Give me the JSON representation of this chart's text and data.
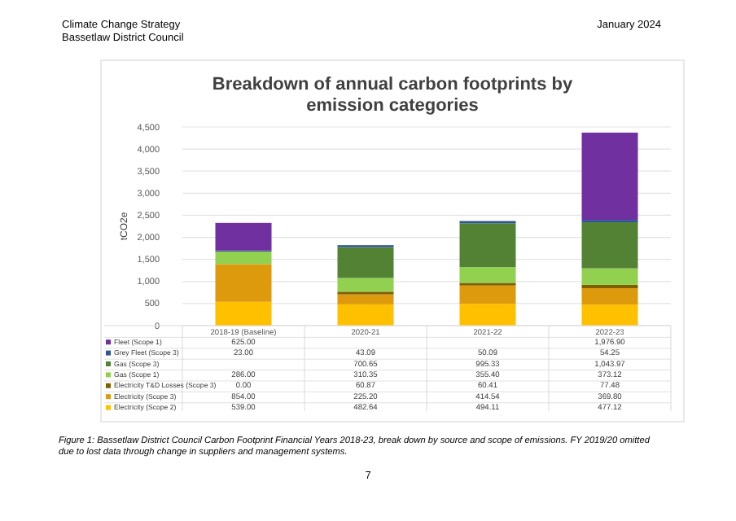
{
  "chart_data": {
    "type": "bar",
    "title": "Breakdown of annual carbon footprints by emission categories",
    "ylabel": "tCO2e",
    "annotations": [
      "Climate Change Strategy",
      "Bassetlaw District Council",
      "January 2024",
      "Figure 1: Bassetlaw District Council Carbon Footprint Financial Years 2018-23, break down by source and scope of emissions. FY 2019/20 omitted due to lost data through change in suppliers and management systems.",
      "7"
    ],
    "categories": [
      "2018-19 (Baseline)",
      "2020-21",
      "2021-22",
      "2022-23"
    ],
    "stacked": true,
    "grid": "y",
    "legend": "bottom",
    "ylim": [
      0,
      4500
    ],
    "yticks": [
      0,
      {
        "value": 500,
        "label": "500"
      },
      {
        "value": 1000,
        "label": "1,000"
      },
      {
        "value": 1500,
        "label": "1,500"
      },
      {
        "value": 2000,
        "label": "2,000"
      },
      {
        "value": 2500,
        "label": "2,500"
      },
      {
        "value": 3000,
        "label": "3,000"
      },
      {
        "value": 3500,
        "label": "3,500"
      },
      {
        "value": 4000,
        "label": "4,000"
      },
      {
        "value": 4500,
        "label": "4,500"
      }
    ],
    "series": [
      {
        "name": "Electricity (Scope 2)",
        "color": "#ffc000",
        "values": [
          539.0,
          482.64,
          494.11,
          477.12
        ],
        "value_labels": [
          "539.00",
          "482.64",
          "494.11",
          "477.12"
        ]
      },
      {
        "name": "Electricity (Scope 3)",
        "color": "#dd9a0c",
        "values": [
          854.0,
          225.2,
          414.54,
          369.8
        ],
        "value_labels": [
          "854.00",
          "225.20",
          "414.54",
          "369.80"
        ]
      },
      {
        "name": "Electricity T&D Losses (Scope 3)",
        "color": "#7f6000",
        "values": [
          0.0,
          60.87,
          60.41,
          77.48
        ],
        "value_labels": [
          "0.00",
          "60.87",
          "60.41",
          "77.48"
        ]
      },
      {
        "name": "Gas (Scope 1)",
        "color": "#92d050",
        "values": [
          286.0,
          310.35,
          355.4,
          373.12
        ],
        "value_labels": [
          "286.00",
          "310.35",
          "355.40",
          "373.12"
        ]
      },
      {
        "name": "Gas (Scope 3)",
        "color": "#548235",
        "values": [
          null,
          700.65,
          995.33,
          1043.97
        ],
        "value_labels": [
          null,
          "700.65",
          "995.33",
          "1,043.97"
        ]
      },
      {
        "name": "Grey Fleet (Scope 3)",
        "color": "#2f5597",
        "values": [
          23.0,
          43.09,
          50.09,
          54.25
        ],
        "value_labels": [
          "23.00",
          "43.09",
          "50.09",
          "54.25"
        ]
      },
      {
        "name": "Fleet (Scope 1)",
        "color": "#7030a0",
        "values": [
          625.0,
          null,
          null,
          1976.9
        ],
        "value_labels": [
          "625.00",
          null,
          null,
          "1,976.90"
        ]
      }
    ]
  }
}
